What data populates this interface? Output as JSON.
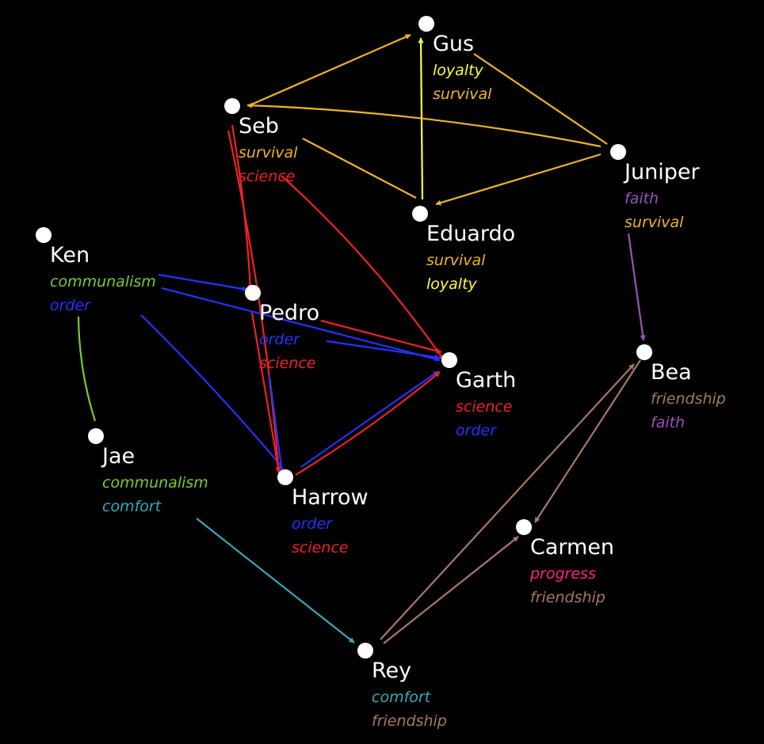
{
  "colors": {
    "background": "#000000",
    "survival": "#f0b429",
    "loyalty": "#ffff33",
    "science": "#ee2222",
    "order": "#2233ff",
    "communalism": "#77cc33",
    "comfort": "#33aabb",
    "faith": "#9955bb",
    "friendship": "#aa7766",
    "progress": "#ff2288"
  },
  "nodes": [
    {
      "id": "gus",
      "name": "Gus",
      "tags": [
        "loyalty",
        "survival"
      ]
    },
    {
      "id": "seb",
      "name": "Seb",
      "tags": [
        "survival",
        "science"
      ]
    },
    {
      "id": "juniper",
      "name": "Juniper",
      "tags": [
        "faith",
        "survival"
      ]
    },
    {
      "id": "eduardo",
      "name": "Eduardo",
      "tags": [
        "survival",
        "loyalty"
      ]
    },
    {
      "id": "ken",
      "name": "Ken",
      "tags": [
        "communalism",
        "order"
      ]
    },
    {
      "id": "pedro",
      "name": "Pedro",
      "tags": [
        "order",
        "science"
      ]
    },
    {
      "id": "garth",
      "name": "Garth",
      "tags": [
        "science",
        "order"
      ]
    },
    {
      "id": "bea",
      "name": "Bea",
      "tags": [
        "friendship",
        "faith"
      ]
    },
    {
      "id": "jae",
      "name": "Jae",
      "tags": [
        "communalism",
        "comfort"
      ]
    },
    {
      "id": "harrow",
      "name": "Harrow",
      "tags": [
        "order",
        "science"
      ]
    },
    {
      "id": "carmen",
      "name": "Carmen",
      "tags": [
        "progress",
        "friendship"
      ]
    },
    {
      "id": "rey",
      "name": "Rey",
      "tags": [
        "comfort",
        "friendship"
      ]
    }
  ],
  "edges": [
    {
      "from": "seb",
      "to": "gus",
      "tag": "survival",
      "arrow": true
    },
    {
      "from": "eduardo",
      "to": "gus",
      "tag": "loyalty",
      "arrow": true
    },
    {
      "from": "gus",
      "to": "juniper",
      "tag": "survival",
      "arrow": false
    },
    {
      "from": "juniper",
      "to": "seb",
      "tag": "survival",
      "arrow": true
    },
    {
      "from": "juniper",
      "to": "eduardo",
      "tag": "survival",
      "arrow": true
    },
    {
      "from": "seb",
      "to": "eduardo",
      "tag": "survival",
      "arrow": false
    },
    {
      "from": "seb",
      "to": "pedro",
      "tag": "science",
      "arrow": true
    },
    {
      "from": "seb",
      "to": "harrow",
      "tag": "science",
      "arrow": true
    },
    {
      "from": "seb",
      "to": "garth",
      "tag": "science",
      "arrow": true
    },
    {
      "from": "ken",
      "to": "pedro",
      "tag": "order",
      "arrow": true
    },
    {
      "from": "ken",
      "to": "garth",
      "tag": "order",
      "arrow": true
    },
    {
      "from": "ken",
      "to": "harrow",
      "tag": "order",
      "arrow": false
    },
    {
      "from": "ken",
      "to": "jae",
      "tag": "communalism",
      "arrow": false
    },
    {
      "from": "pedro",
      "to": "garth",
      "tag": "order",
      "arrow": true
    },
    {
      "from": "pedro",
      "to": "garth",
      "tag": "science",
      "arrow": true
    },
    {
      "from": "pedro",
      "to": "harrow",
      "tag": "order",
      "arrow": true
    },
    {
      "from": "pedro",
      "to": "harrow",
      "tag": "science",
      "arrow": true
    },
    {
      "from": "harrow",
      "to": "garth",
      "tag": "order",
      "arrow": true
    },
    {
      "from": "harrow",
      "to": "garth",
      "tag": "science",
      "arrow": true
    },
    {
      "from": "juniper",
      "to": "bea",
      "tag": "faith",
      "arrow": true
    },
    {
      "from": "jae",
      "to": "rey",
      "tag": "comfort",
      "arrow": true
    },
    {
      "from": "rey",
      "to": "bea",
      "tag": "friendship",
      "arrow": true
    },
    {
      "from": "bea",
      "to": "carmen",
      "tag": "friendship",
      "arrow": true
    },
    {
      "from": "rey",
      "to": "carmen",
      "tag": "friendship",
      "arrow": true
    }
  ]
}
